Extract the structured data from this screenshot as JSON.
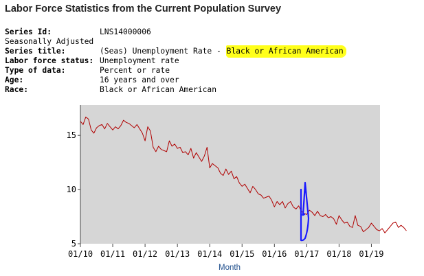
{
  "header": {
    "title": "Labor Force Statistics from the Current Population Survey"
  },
  "series_info": {
    "series_id_label": "Series Id:",
    "series_id": "LNS14000006",
    "adjustment": "Seasonally Adjusted",
    "series_title_label": "Series title:",
    "series_title_prefix": "(Seas) Unemployment Rate - ",
    "series_title_highlight": "Black or African American",
    "labor_force_status_label": "Labor force status:",
    "labor_force_status": "Unemployment rate",
    "type_of_data_label": "Type of data:",
    "type_of_data": "Percent or rate",
    "age_label": "Age:",
    "age": "16 years and over",
    "race_label": "Race:",
    "race": "Black or African American"
  },
  "colors": {
    "plot_background": "#d6d6d6",
    "line": "#b00000",
    "highlight": "#ffff1a",
    "annotation": "#1a1aff",
    "xlabel": "#1f4e8c"
  },
  "chart_data": {
    "type": "line",
    "title": "",
    "xlabel": "Month",
    "ylabel": "",
    "ylim": [
      5,
      17.8
    ],
    "yticks": [
      5,
      10,
      15
    ],
    "xticks": [
      "01/10",
      "01/11",
      "01/12",
      "01/13",
      "01/14",
      "01/15",
      "01/16",
      "01/17",
      "01/18",
      "01/19"
    ],
    "grid": false,
    "start": "2010-01",
    "series": [
      {
        "values": [
          16.3,
          16.0,
          16.7,
          16.5,
          15.5,
          15.2,
          15.7,
          15.9,
          16.0,
          15.6,
          16.1,
          15.8,
          15.5,
          15.8,
          15.6,
          15.9,
          16.4,
          16.2,
          16.1,
          15.9,
          15.7,
          16.0,
          15.6,
          15.2,
          14.5,
          15.8,
          15.4,
          13.9,
          13.5,
          14.0,
          13.7,
          13.6,
          13.5,
          14.5,
          14.0,
          14.2,
          13.8,
          13.9,
          13.4,
          13.5,
          13.2,
          13.8,
          12.9,
          13.4,
          13.0,
          12.6,
          13.1,
          13.9,
          12.0,
          12.4,
          12.2,
          12.0,
          11.5,
          11.3,
          11.9,
          11.4,
          11.7,
          11.0,
          11.2,
          10.6,
          10.3,
          10.5,
          10.1,
          9.7,
          10.3,
          10.0,
          9.6,
          9.5,
          9.2,
          9.3,
          9.4,
          9.0,
          8.4,
          8.9,
          8.6,
          8.9,
          8.3,
          8.7,
          8.9,
          8.4,
          8.2,
          8.5,
          8.0,
          7.8,
          7.7,
          8.1,
          7.9,
          7.6,
          8.0,
          7.6,
          7.5,
          7.7,
          7.4,
          7.5,
          7.3,
          6.8,
          7.6,
          7.2,
          6.9,
          7.0,
          6.6,
          6.5,
          7.6,
          6.7,
          6.6,
          6.1,
          6.3,
          6.5,
          6.9,
          6.6,
          6.3,
          6.2,
          6.4,
          6.0,
          6.3,
          6.6,
          6.9,
          7.0,
          6.5,
          6.7,
          6.5,
          6.2
        ]
      }
    ]
  }
}
